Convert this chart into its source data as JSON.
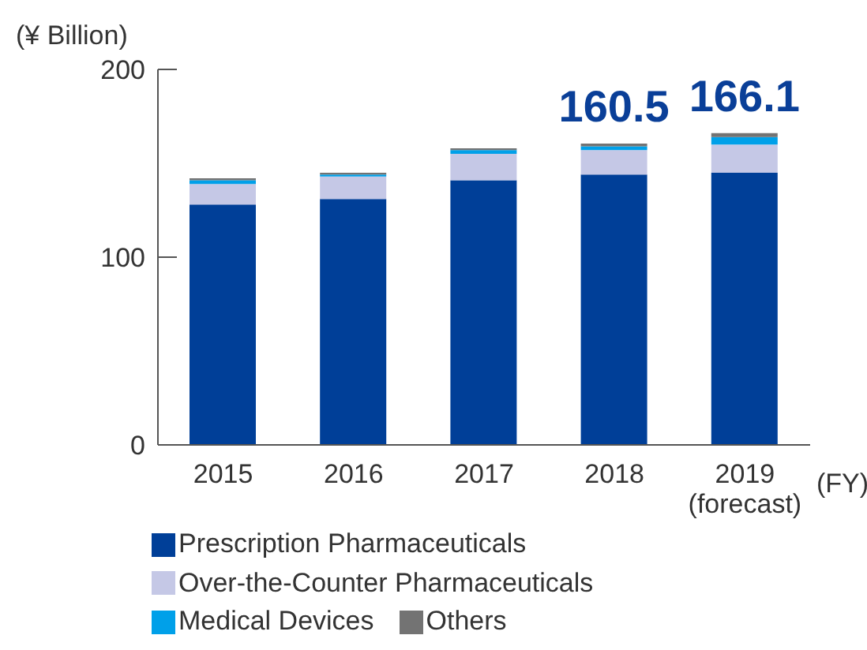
{
  "chart_data": {
    "type": "bar",
    "stacked": true,
    "ylabel": "(¥ Billion)",
    "xlabel": "(FY)",
    "categories": [
      "2015",
      "2016",
      "2017",
      "2018",
      "2019\n(forecast)"
    ],
    "series": [
      {
        "name": "Prescription Pharmaceuticals",
        "color": "#003f98",
        "values": [
          128,
          131,
          141,
          144,
          145
        ]
      },
      {
        "name": "Over-the-Counter Pharmaceuticals",
        "color": "#c5c8e6",
        "values": [
          11,
          12,
          14,
          13,
          15
        ]
      },
      {
        "name": "Medical Devices",
        "color": "#00a0e9",
        "values": [
          2,
          1,
          2,
          2,
          4
        ]
      },
      {
        "name": "Others",
        "color": "#737373",
        "values": [
          1,
          1,
          1,
          1.5,
          2.1
        ]
      }
    ],
    "totals": [
      null,
      null,
      null,
      "160.5",
      "166.1"
    ],
    "ylim": [
      0,
      200
    ],
    "yticks": [
      0,
      100,
      200
    ],
    "legend": "bottom"
  }
}
